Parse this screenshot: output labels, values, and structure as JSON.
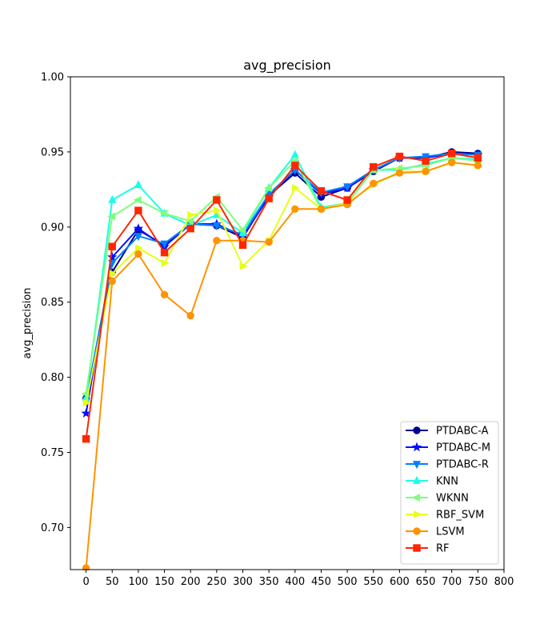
{
  "chart_data": {
    "type": "line",
    "title": "avg_precision",
    "xlabel": "",
    "ylabel": "avg_precision",
    "xlim": [
      -30,
      800
    ],
    "ylim": [
      0.672,
      1.0
    ],
    "xticks": [
      0,
      50,
      100,
      150,
      200,
      250,
      300,
      350,
      400,
      450,
      500,
      550,
      600,
      650,
      700,
      750,
      800
    ],
    "yticks": [
      0.7,
      0.75,
      0.8,
      0.85,
      0.9,
      0.95,
      1.0
    ],
    "ytick_labels": [
      "0.70",
      "0.75",
      "0.80",
      "0.85",
      "0.90",
      "0.95",
      "1.00"
    ],
    "grid": false,
    "legend_position": "lower-right",
    "x": [
      0,
      50,
      100,
      150,
      200,
      250,
      300,
      350,
      400,
      450,
      500,
      550,
      600,
      650,
      700,
      750
    ],
    "series": [
      {
        "name": "PTDABC-A",
        "color": "#00008f",
        "marker": "circle",
        "values": [
          0.786,
          0.87,
          0.898,
          0.888,
          0.902,
          0.901,
          0.893,
          0.921,
          0.936,
          0.92,
          0.926,
          0.937,
          0.946,
          0.946,
          0.95,
          0.949
        ]
      },
      {
        "name": "PTDABC-M",
        "color": "#0010ff",
        "marker": "star",
        "values": [
          0.776,
          0.88,
          0.899,
          0.887,
          0.902,
          0.902,
          0.894,
          0.92,
          0.938,
          0.922,
          0.926,
          0.938,
          0.946,
          0.946,
          0.949,
          0.948
        ]
      },
      {
        "name": "PTDABC-R",
        "color": "#0080ff",
        "marker": "triangle-down",
        "values": [
          0.785,
          0.876,
          0.894,
          0.889,
          0.902,
          0.901,
          0.895,
          0.922,
          0.938,
          0.923,
          0.927,
          0.938,
          0.946,
          0.947,
          0.949,
          0.948
        ]
      },
      {
        "name": "KNN",
        "color": "#1affe6",
        "marker": "triangle-up",
        "values": [
          0.786,
          0.918,
          0.928,
          0.909,
          0.901,
          0.908,
          0.896,
          0.926,
          0.948,
          0.913,
          0.916,
          0.938,
          0.938,
          0.942,
          0.946,
          0.945
        ]
      },
      {
        "name": "WKNN",
        "color": "#7dff7a",
        "marker": "triangle-left",
        "values": [
          0.789,
          0.907,
          0.918,
          0.909,
          0.904,
          0.92,
          0.898,
          0.926,
          0.944,
          0.912,
          0.916,
          0.938,
          0.939,
          0.941,
          0.946,
          0.944
        ]
      },
      {
        "name": "RBF_SVM",
        "color": "#e6ff1a",
        "marker": "triangle-right",
        "values": [
          0.783,
          0.869,
          0.886,
          0.876,
          0.908,
          0.911,
          0.874,
          0.891,
          0.926,
          0.912,
          0.916,
          0.928,
          0.937,
          0.937,
          0.943,
          0.941
        ]
      },
      {
        "name": "LSVM",
        "color": "#ff9300",
        "marker": "circle",
        "values": [
          0.673,
          0.864,
          0.882,
          0.855,
          0.841,
          0.891,
          0.891,
          0.89,
          0.912,
          0.912,
          0.915,
          0.929,
          0.936,
          0.937,
          0.943,
          0.941
        ]
      },
      {
        "name": "RF",
        "color": "#ff2600",
        "marker": "square",
        "values": [
          0.759,
          0.887,
          0.911,
          0.883,
          0.899,
          0.918,
          0.888,
          0.919,
          0.941,
          0.924,
          0.918,
          0.94,
          0.947,
          0.944,
          0.949,
          0.946
        ]
      }
    ]
  }
}
